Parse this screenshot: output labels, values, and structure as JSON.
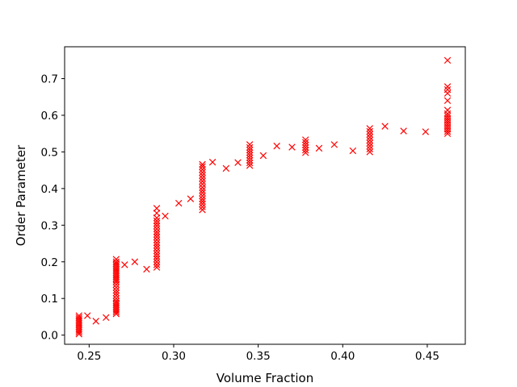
{
  "chart_data": {
    "type": "scatter",
    "title": "",
    "xlabel": "Volume Fraction",
    "ylabel": "Order Parameter",
    "xlim": [
      0.2355,
      0.4725
    ],
    "ylim": [
      -0.025,
      0.787
    ],
    "xticks": [
      0.25,
      0.3,
      0.35,
      0.4,
      0.45
    ],
    "xtick_labels": [
      "0.25",
      "0.30",
      "0.35",
      "0.40",
      "0.45"
    ],
    "yticks": [
      0.0,
      0.1,
      0.2,
      0.3,
      0.4,
      0.5,
      0.6,
      0.7
    ],
    "ytick_labels": [
      "0.0",
      "0.1",
      "0.2",
      "0.3",
      "0.4",
      "0.5",
      "0.6",
      "0.7"
    ],
    "grid": false,
    "legend": "none",
    "marker": "x",
    "color": "#ff0000",
    "series": [
      {
        "points": [
          [
            0.244,
            0.003
          ],
          [
            0.244,
            0.008
          ],
          [
            0.244,
            0.013
          ],
          [
            0.244,
            0.018
          ],
          [
            0.244,
            0.023
          ],
          [
            0.244,
            0.028
          ],
          [
            0.244,
            0.033
          ],
          [
            0.244,
            0.038
          ],
          [
            0.244,
            0.043
          ],
          [
            0.244,
            0.048
          ],
          [
            0.244,
            0.053
          ],
          [
            0.249,
            0.053
          ],
          [
            0.254,
            0.038
          ],
          [
            0.26,
            0.048
          ],
          [
            0.266,
            0.058
          ],
          [
            0.266,
            0.063
          ],
          [
            0.266,
            0.068
          ],
          [
            0.266,
            0.073
          ],
          [
            0.266,
            0.078
          ],
          [
            0.266,
            0.083
          ],
          [
            0.266,
            0.088
          ],
          [
            0.266,
            0.093
          ],
          [
            0.266,
            0.1
          ],
          [
            0.266,
            0.108
          ],
          [
            0.266,
            0.115
          ],
          [
            0.266,
            0.122
          ],
          [
            0.266,
            0.13
          ],
          [
            0.266,
            0.138
          ],
          [
            0.266,
            0.145
          ],
          [
            0.266,
            0.15
          ],
          [
            0.266,
            0.155
          ],
          [
            0.266,
            0.16
          ],
          [
            0.266,
            0.165
          ],
          [
            0.266,
            0.17
          ],
          [
            0.266,
            0.175
          ],
          [
            0.266,
            0.18
          ],
          [
            0.266,
            0.185
          ],
          [
            0.266,
            0.19
          ],
          [
            0.266,
            0.195
          ],
          [
            0.266,
            0.2
          ],
          [
            0.266,
            0.207
          ],
          [
            0.271,
            0.192
          ],
          [
            0.277,
            0.2
          ],
          [
            0.284,
            0.18
          ],
          [
            0.29,
            0.185
          ],
          [
            0.29,
            0.192
          ],
          [
            0.29,
            0.2
          ],
          [
            0.29,
            0.208
          ],
          [
            0.29,
            0.215
          ],
          [
            0.29,
            0.222
          ],
          [
            0.29,
            0.23
          ],
          [
            0.29,
            0.238
          ],
          [
            0.29,
            0.245
          ],
          [
            0.29,
            0.252
          ],
          [
            0.29,
            0.26
          ],
          [
            0.29,
            0.268
          ],
          [
            0.29,
            0.275
          ],
          [
            0.29,
            0.282
          ],
          [
            0.29,
            0.29
          ],
          [
            0.29,
            0.298
          ],
          [
            0.29,
            0.305
          ],
          [
            0.29,
            0.312
          ],
          [
            0.29,
            0.32
          ],
          [
            0.29,
            0.333
          ],
          [
            0.29,
            0.346
          ],
          [
            0.295,
            0.325
          ],
          [
            0.303,
            0.36
          ],
          [
            0.31,
            0.372
          ],
          [
            0.317,
            0.342
          ],
          [
            0.317,
            0.35
          ],
          [
            0.317,
            0.358
          ],
          [
            0.317,
            0.365
          ],
          [
            0.317,
            0.372
          ],
          [
            0.317,
            0.38
          ],
          [
            0.317,
            0.388
          ],
          [
            0.317,
            0.395
          ],
          [
            0.317,
            0.403
          ],
          [
            0.317,
            0.412
          ],
          [
            0.317,
            0.42
          ],
          [
            0.317,
            0.428
          ],
          [
            0.317,
            0.436
          ],
          [
            0.317,
            0.444
          ],
          [
            0.317,
            0.452
          ],
          [
            0.317,
            0.46
          ],
          [
            0.317,
            0.466
          ],
          [
            0.323,
            0.472
          ],
          [
            0.331,
            0.455
          ],
          [
            0.338,
            0.471
          ],
          [
            0.345,
            0.463
          ],
          [
            0.345,
            0.47
          ],
          [
            0.345,
            0.477
          ],
          [
            0.345,
            0.484
          ],
          [
            0.345,
            0.491
          ],
          [
            0.345,
            0.498
          ],
          [
            0.345,
            0.505
          ],
          [
            0.345,
            0.512
          ],
          [
            0.345,
            0.52
          ],
          [
            0.353,
            0.49
          ],
          [
            0.361,
            0.516
          ],
          [
            0.37,
            0.513
          ],
          [
            0.378,
            0.498
          ],
          [
            0.378,
            0.505
          ],
          [
            0.378,
            0.512
          ],
          [
            0.378,
            0.519
          ],
          [
            0.378,
            0.526
          ],
          [
            0.378,
            0.533
          ],
          [
            0.386,
            0.51
          ],
          [
            0.395,
            0.52
          ],
          [
            0.406,
            0.503
          ],
          [
            0.416,
            0.5
          ],
          [
            0.416,
            0.508
          ],
          [
            0.416,
            0.516
          ],
          [
            0.416,
            0.524
          ],
          [
            0.416,
            0.532
          ],
          [
            0.416,
            0.54
          ],
          [
            0.416,
            0.548
          ],
          [
            0.416,
            0.556
          ],
          [
            0.416,
            0.564
          ],
          [
            0.425,
            0.57
          ],
          [
            0.436,
            0.557
          ],
          [
            0.449,
            0.555
          ],
          [
            0.462,
            0.55
          ],
          [
            0.462,
            0.556
          ],
          [
            0.462,
            0.562
          ],
          [
            0.462,
            0.568
          ],
          [
            0.462,
            0.574
          ],
          [
            0.462,
            0.58
          ],
          [
            0.462,
            0.586
          ],
          [
            0.462,
            0.592
          ],
          [
            0.462,
            0.598
          ],
          [
            0.462,
            0.604
          ],
          [
            0.462,
            0.614
          ],
          [
            0.462,
            0.64
          ],
          [
            0.462,
            0.66
          ],
          [
            0.462,
            0.67
          ],
          [
            0.462,
            0.678
          ],
          [
            0.462,
            0.75
          ]
        ]
      }
    ]
  }
}
